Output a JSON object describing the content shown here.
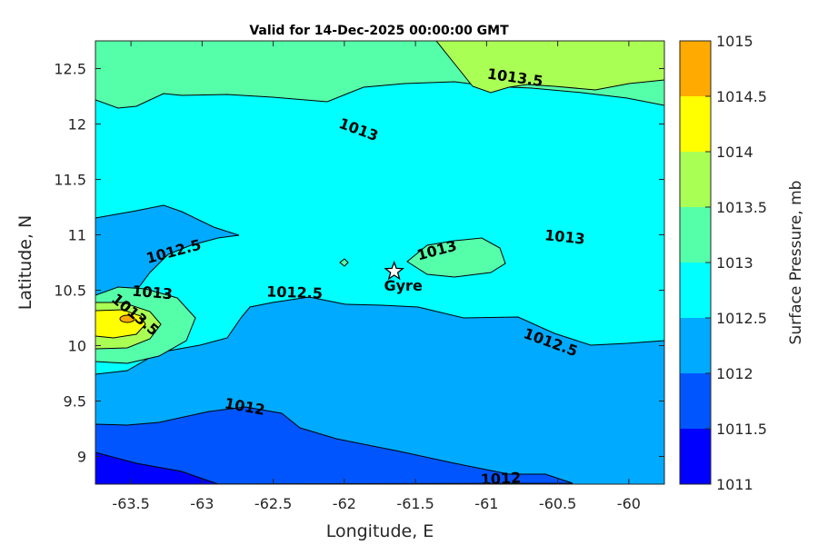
{
  "chart_data": {
    "type": "heatmap",
    "subtype": "filled-contour-map",
    "title": "Valid for 14-Dec-2025 00:00:00 GMT",
    "xlabel": "Longitude, E",
    "ylabel": "Latitude, N",
    "xlim": [
      -63.75,
      -59.75
    ],
    "ylim": [
      8.75,
      12.75
    ],
    "xticks": [
      -63.5,
      -63,
      -62.5,
      -62,
      -61.5,
      -61,
      -60.5,
      -60
    ],
    "xtick_labels": [
      "-63.5",
      "-63",
      "-62.5",
      "-62",
      "-61.5",
      "-61",
      "-60.5",
      "-60"
    ],
    "yticks": [
      9,
      9.5,
      10,
      10.5,
      11,
      11.5,
      12,
      12.5
    ],
    "ytick_labels": [
      "9",
      "9.5",
      "10",
      "10.5",
      "11",
      "11.5",
      "12",
      "12.5"
    ],
    "colorbar": {
      "label": "Surface Pressure, mb",
      "levels": [
        1011,
        1011.5,
        1012,
        1012.5,
        1013,
        1013.5,
        1014,
        1014.5,
        1015
      ],
      "level_labels": [
        "1011",
        "1011.5",
        "1012",
        "1012.5",
        "1013",
        "1013.5",
        "1014",
        "1014.5",
        "1015"
      ],
      "colors": [
        "#0000ff",
        "#0055ff",
        "#00aaff",
        "#00ffff",
        "#55ffaa",
        "#aaff55",
        "#ffff00",
        "#ffaa00",
        "#ff5500"
      ]
    },
    "contour_labels": [
      {
        "text": "1013.5",
        "lon": -60.8,
        "lat": 12.42,
        "angle": 8
      },
      {
        "text": "1013",
        "lon": -61.9,
        "lat": 11.95,
        "angle": 20
      },
      {
        "text": "1013",
        "lon": -60.45,
        "lat": 10.98,
        "angle": 6
      },
      {
        "text": "1013",
        "lon": -61.35,
        "lat": 10.86,
        "angle": -15
      },
      {
        "text": "1012.5",
        "lon": -63.2,
        "lat": 10.85,
        "angle": -15
      },
      {
        "text": "1013",
        "lon": -63.35,
        "lat": 10.48,
        "angle": 5
      },
      {
        "text": "1013.5",
        "lon": -63.47,
        "lat": 10.28,
        "angle": 40
      },
      {
        "text": "1012.5",
        "lon": -62.35,
        "lat": 10.48,
        "angle": 2
      },
      {
        "text": "1012.5",
        "lon": -60.55,
        "lat": 10.03,
        "angle": 20
      },
      {
        "text": "1012",
        "lon": -62.7,
        "lat": 9.45,
        "angle": 10
      },
      {
        "text": "1012",
        "lon": -60.9,
        "lat": 8.8,
        "angle": -3
      }
    ],
    "marker": {
      "name": "Gyre",
      "lon": -61.65,
      "lat": 10.67,
      "symbol": "star"
    }
  }
}
